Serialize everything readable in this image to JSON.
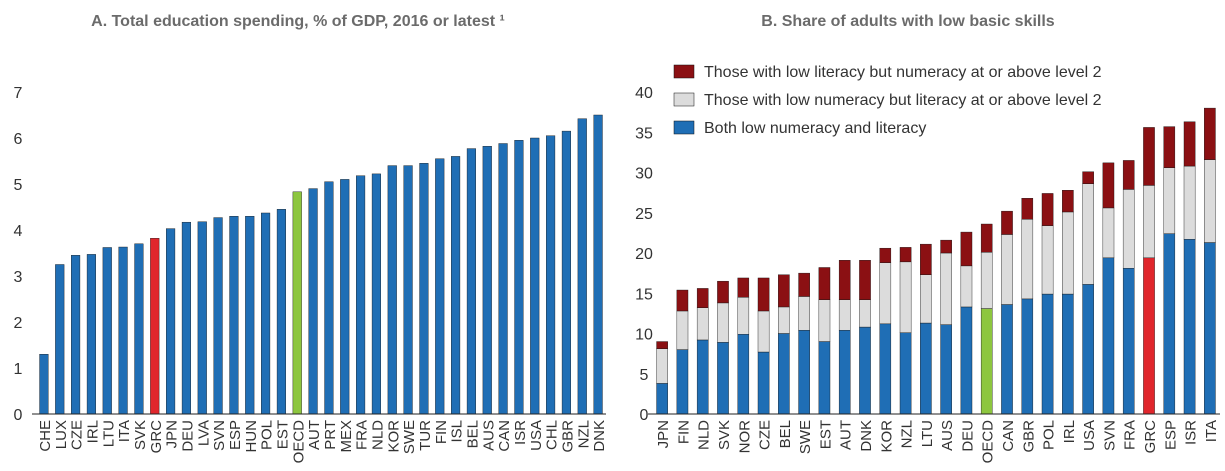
{
  "chart_data": [
    {
      "type": "bar",
      "title": "A. Total education spending, % of GDP, 2016 or latest ¹",
      "categories": [
        "CHE",
        "LUX",
        "CZE",
        "IRL",
        "LTU",
        "ITA",
        "SVK",
        "GRC",
        "JPN",
        "DEU",
        "LVA",
        "SVN",
        "ESP",
        "HUN",
        "POL",
        "EST",
        "OECD",
        "AUT",
        "PRT",
        "MEX",
        "FRA",
        "NLD",
        "KOR",
        "SWE",
        "TUR",
        "FIN",
        "ISL",
        "BEL",
        "AUS",
        "CAN",
        "ISR",
        "USA",
        "CHL",
        "GBR",
        "NZL",
        "DNK"
      ],
      "values": [
        1.3,
        3.25,
        3.45,
        3.47,
        3.62,
        3.63,
        3.7,
        3.82,
        4.03,
        4.17,
        4.18,
        4.27,
        4.3,
        4.3,
        4.37,
        4.45,
        4.83,
        4.9,
        5.05,
        5.1,
        5.18,
        5.22,
        5.4,
        5.4,
        5.45,
        5.55,
        5.6,
        5.77,
        5.82,
        5.88,
        5.95,
        6.0,
        6.05,
        6.15,
        6.42,
        6.5
      ],
      "colors": [
        "#1f6eb5",
        "#1f6eb5",
        "#1f6eb5",
        "#1f6eb5",
        "#1f6eb5",
        "#1f6eb5",
        "#1f6eb5",
        "#e0262c",
        "#1f6eb5",
        "#1f6eb5",
        "#1f6eb5",
        "#1f6eb5",
        "#1f6eb5",
        "#1f6eb5",
        "#1f6eb5",
        "#1f6eb5",
        "#8dc63f",
        "#1f6eb5",
        "#1f6eb5",
        "#1f6eb5",
        "#1f6eb5",
        "#1f6eb5",
        "#1f6eb5",
        "#1f6eb5",
        "#1f6eb5",
        "#1f6eb5",
        "#1f6eb5",
        "#1f6eb5",
        "#1f6eb5",
        "#1f6eb5",
        "#1f6eb5",
        "#1f6eb5",
        "#1f6eb5",
        "#1f6eb5",
        "#1f6eb5",
        "#1f6eb5"
      ],
      "ylim": [
        0,
        7
      ],
      "yticks": [
        0,
        1,
        2,
        3,
        4,
        5,
        6,
        7
      ],
      "grid": false
    },
    {
      "type": "stacked_bar",
      "title": "B. Share of adults with low basic skills",
      "categories": [
        "JPN",
        "FIN",
        "NLD",
        "SVK",
        "NOR",
        "CZE",
        "BEL",
        "SWE",
        "EST",
        "AUT",
        "DNK",
        "KOR",
        "NZL",
        "LTU",
        "AUS",
        "DEU",
        "OECD",
        "CAN",
        "GBR",
        "POL",
        "IRL",
        "USA",
        "SVN",
        "FRA",
        "GRC",
        "ESP",
        "ISR",
        "ITA"
      ],
      "series": [
        {
          "name": "Both low numeracy and literacy",
          "color": "#1f6eb5",
          "colors": [
            "#1f6eb5",
            "#1f6eb5",
            "#1f6eb5",
            "#1f6eb5",
            "#1f6eb5",
            "#1f6eb5",
            "#1f6eb5",
            "#1f6eb5",
            "#1f6eb5",
            "#1f6eb5",
            "#1f6eb5",
            "#1f6eb5",
            "#1f6eb5",
            "#1f6eb5",
            "#1f6eb5",
            "#1f6eb5",
            "#8dc63f",
            "#1f6eb5",
            "#1f6eb5",
            "#1f6eb5",
            "#1f6eb5",
            "#1f6eb5",
            "#1f6eb5",
            "#1f6eb5",
            "#e0262c",
            "#1f6eb5",
            "#1f6eb5",
            "#1f6eb5"
          ],
          "values": [
            3.8,
            8.0,
            9.2,
            8.9,
            9.9,
            7.7,
            10.0,
            10.4,
            9.0,
            10.4,
            10.8,
            11.2,
            10.1,
            11.3,
            11.1,
            13.3,
            13.1,
            13.6,
            14.3,
            14.9,
            14.9,
            16.1,
            19.4,
            18.1,
            19.4,
            22.4,
            21.7,
            21.3
          ]
        },
        {
          "name": "Those with low numeracy but literacy at or above level 2",
          "color": "#dcdcdc",
          "values": [
            4.3,
            4.8,
            4.0,
            4.9,
            4.6,
            5.1,
            3.3,
            4.2,
            5.2,
            3.8,
            3.4,
            7.6,
            8.8,
            6.0,
            8.9,
            5.1,
            7.0,
            8.7,
            9.9,
            8.5,
            10.2,
            12.5,
            6.2,
            9.8,
            9.0,
            8.2,
            9.1,
            10.3
          ]
        },
        {
          "name": "Those with low literacy but numeracy at or above level 2",
          "color": "#8b1013",
          "values": [
            0.9,
            2.6,
            2.4,
            2.7,
            2.4,
            4.1,
            4.0,
            2.9,
            4.0,
            4.9,
            4.9,
            1.8,
            1.8,
            3.8,
            1.6,
            4.2,
            3.5,
            2.9,
            2.6,
            4.0,
            2.7,
            1.5,
            5.6,
            3.6,
            7.2,
            5.1,
            5.5,
            6.4
          ]
        }
      ],
      "ylim": [
        0,
        40
      ],
      "yticks": [
        0,
        5,
        10,
        15,
        20,
        25,
        30,
        35,
        40
      ],
      "grid": false,
      "legend": "top-left"
    }
  ]
}
